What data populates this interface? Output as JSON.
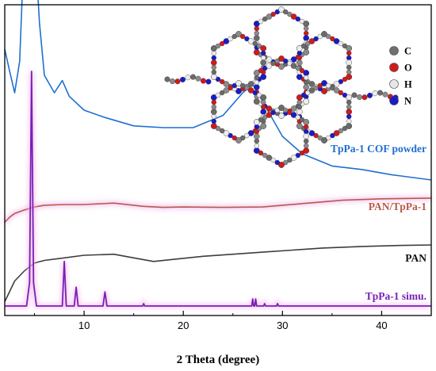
{
  "chart_data": {
    "type": "line",
    "title": "",
    "xlabel": "2 Theta (degree)",
    "ylabel": "",
    "xlim": [
      2,
      45
    ],
    "x_ticks": [
      10,
      20,
      30,
      40
    ],
    "y_ticks": [],
    "grid": false,
    "series": [
      {
        "name": "TpPa-1 COF powder",
        "color": "#1f6fd0",
        "points": [
          [
            2,
            0.905
          ],
          [
            2.5,
            0.918
          ],
          [
            3,
            0.93
          ],
          [
            3.5,
            0.912
          ],
          [
            4,
            0.84
          ],
          [
            4.3,
            0.77
          ],
          [
            4.6,
            0.78
          ],
          [
            5,
            0.84
          ],
          [
            5.5,
            0.89
          ],
          [
            6,
            0.92
          ],
          [
            7,
            0.93
          ],
          [
            7.8,
            0.923
          ],
          [
            8.5,
            0.932
          ],
          [
            10,
            0.94
          ],
          [
            12,
            0.944
          ],
          [
            15,
            0.949
          ],
          [
            18,
            0.95
          ],
          [
            21,
            0.95
          ],
          [
            24,
            0.943
          ],
          [
            26,
            0.93
          ],
          [
            27,
            0.925
          ],
          [
            28,
            0.935
          ],
          [
            30,
            0.955
          ],
          [
            32,
            0.965
          ],
          [
            35,
            0.972
          ],
          [
            38,
            0.974
          ],
          [
            41,
            0.977
          ],
          [
            45,
            0.98
          ]
        ]
      },
      {
        "name": "PAN/TpPa-1",
        "color": "#b85a4a",
        "points": [
          [
            2,
            0.94
          ],
          [
            2.5,
            0.955
          ],
          [
            3,
            0.965
          ],
          [
            4,
            0.975
          ],
          [
            5,
            0.983
          ],
          [
            6,
            0.988
          ],
          [
            8,
            0.99
          ],
          [
            10,
            0.99
          ],
          [
            13,
            0.994
          ],
          [
            16,
            0.985
          ],
          [
            18,
            0.982
          ],
          [
            20,
            0.983
          ],
          [
            24,
            0.982
          ],
          [
            28,
            0.983
          ],
          [
            30,
            0.988
          ],
          [
            33,
            0.995
          ],
          [
            36,
            1.002
          ],
          [
            40,
            1.006
          ],
          [
            45,
            1.008
          ]
        ]
      },
      {
        "name": "PAN",
        "color": "#3d3d3d",
        "points": [
          [
            2,
            0.78
          ],
          [
            2.5,
            0.8
          ],
          [
            3,
            0.82
          ],
          [
            4,
            0.84
          ],
          [
            5,
            0.855
          ],
          [
            6,
            0.86
          ],
          [
            8,
            0.865
          ],
          [
            10,
            0.87
          ],
          [
            13,
            0.872
          ],
          [
            15,
            0.865
          ],
          [
            17,
            0.858
          ],
          [
            19,
            0.862
          ],
          [
            22,
            0.868
          ],
          [
            25,
            0.872
          ],
          [
            28,
            0.876
          ],
          [
            31,
            0.88
          ],
          [
            34,
            0.884
          ],
          [
            38,
            0.887
          ],
          [
            42,
            0.889
          ],
          [
            45,
            0.89
          ]
        ]
      },
      {
        "name": "TpPa-1 simu.",
        "color": "#7a1fb5",
        "points": [
          [
            2,
            0.0
          ],
          [
            4.2,
            0.0
          ],
          [
            4.5,
            0.1
          ],
          [
            4.7,
            1.0
          ],
          [
            4.9,
            0.1
          ],
          [
            5.2,
            0.0
          ],
          [
            7.8,
            0.0
          ],
          [
            8.0,
            0.19
          ],
          [
            8.2,
            0.0
          ],
          [
            9.0,
            0.0
          ],
          [
            9.2,
            0.08
          ],
          [
            9.4,
            0.0
          ],
          [
            11.9,
            0.0
          ],
          [
            12.1,
            0.06
          ],
          [
            12.3,
            0.0
          ],
          [
            15.9,
            0.0
          ],
          [
            16.0,
            0.01
          ],
          [
            16.1,
            0.0
          ],
          [
            26.9,
            0.0
          ],
          [
            27.0,
            0.03
          ],
          [
            27.1,
            0.0
          ],
          [
            27.2,
            0.0
          ],
          [
            27.3,
            0.03
          ],
          [
            27.4,
            0.0
          ],
          [
            28.1,
            0.0
          ],
          [
            28.2,
            0.01
          ],
          [
            28.3,
            0.0
          ],
          [
            29.4,
            0.0
          ],
          [
            29.5,
            0.01
          ],
          [
            29.6,
            0.0
          ],
          [
            45,
            0.0
          ]
        ]
      }
    ],
    "inset": {
      "legend": [
        {
          "label": "C",
          "color": "#707070"
        },
        {
          "label": "O",
          "color": "#d21a1a"
        },
        {
          "label": "H",
          "color": "#e6e6e6"
        },
        {
          "label": "N",
          "color": "#1b1bc8"
        }
      ]
    }
  }
}
